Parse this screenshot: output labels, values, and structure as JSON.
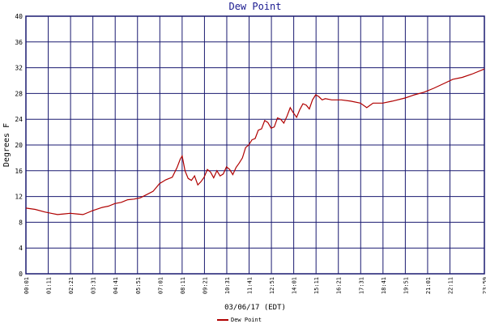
{
  "chart_data": {
    "type": "line",
    "title": "Dew Point",
    "xlabel": "03/06/17 (EDT)",
    "ylabel": "Degrees F",
    "x": [
      "00:01",
      "00:30",
      "01:00",
      "01:20",
      "01:40",
      "02:00",
      "02:20",
      "02:40",
      "03:00",
      "03:15",
      "03:30",
      "04:00",
      "04:20",
      "04:40",
      "05:00",
      "05:20",
      "05:40",
      "06:00",
      "06:20",
      "06:40",
      "07:00",
      "07:20",
      "07:40",
      "07:55",
      "08:05",
      "08:11",
      "08:20",
      "08:30",
      "08:40",
      "08:50",
      "09:00",
      "09:10",
      "09:20",
      "09:30",
      "09:40",
      "09:50",
      "10:00",
      "10:10",
      "10:20",
      "10:30",
      "10:40",
      "10:50",
      "11:00",
      "11:10",
      "11:20",
      "11:30",
      "11:40",
      "11:50",
      "12:00",
      "12:10",
      "12:20",
      "12:30",
      "12:40",
      "12:50",
      "13:00",
      "13:10",
      "13:20",
      "13:30",
      "13:40",
      "13:50",
      "14:00",
      "14:10",
      "14:20",
      "14:30",
      "14:40",
      "14:50",
      "15:00",
      "15:10",
      "15:20",
      "15:30",
      "15:40",
      "16:00",
      "16:30",
      "17:00",
      "17:30",
      "17:50",
      "18:10",
      "18:40",
      "19:10",
      "19:50",
      "20:20",
      "20:50",
      "21:20",
      "21:50",
      "22:20",
      "22:50",
      "23:20",
      "23:59"
    ],
    "series": [
      {
        "name": "Dew Point",
        "color": "#b00000",
        "values": [
          10.2,
          10.0,
          9.6,
          9.4,
          9.2,
          9.3,
          9.4,
          9.3,
          9.2,
          9.5,
          9.8,
          10.3,
          10.5,
          10.9,
          11.1,
          11.5,
          11.6,
          11.8,
          12.3,
          12.8,
          14.0,
          14.6,
          15.0,
          16.5,
          17.8,
          18.3,
          16.0,
          14.8,
          14.5,
          15.2,
          13.8,
          14.3,
          15.0,
          16.2,
          15.8,
          14.9,
          16.0,
          15.2,
          15.5,
          16.6,
          16.2,
          15.4,
          16.5,
          17.2,
          18.0,
          19.6,
          20.0,
          20.8,
          21.0,
          22.3,
          22.5,
          23.8,
          23.5,
          22.6,
          22.8,
          24.2,
          24.0,
          23.4,
          24.5,
          25.8,
          25.0,
          24.3,
          25.5,
          26.4,
          26.2,
          25.6,
          27.0,
          27.8,
          27.5,
          27.0,
          27.2,
          27.0,
          27.0,
          26.8,
          26.5,
          25.8,
          26.5,
          26.5,
          26.8,
          27.3,
          27.8,
          28.2,
          28.8,
          29.5,
          30.2,
          30.5,
          31.0,
          31.8
        ]
      }
    ],
    "xlim": [
      "00:01",
      "23:59"
    ],
    "xticks": [
      "00:01",
      "01:11",
      "02:21",
      "03:31",
      "04:41",
      "05:51",
      "07:01",
      "08:11",
      "09:21",
      "10:31",
      "11:41",
      "12:51",
      "14:01",
      "15:11",
      "16:21",
      "17:31",
      "18:41",
      "19:51",
      "21:01",
      "22:11",
      "23:59"
    ],
    "ylim": [
      0,
      40
    ],
    "yticks": [
      0,
      4,
      8,
      12,
      16,
      20,
      24,
      28,
      32,
      36,
      40
    ],
    "grid": true
  }
}
